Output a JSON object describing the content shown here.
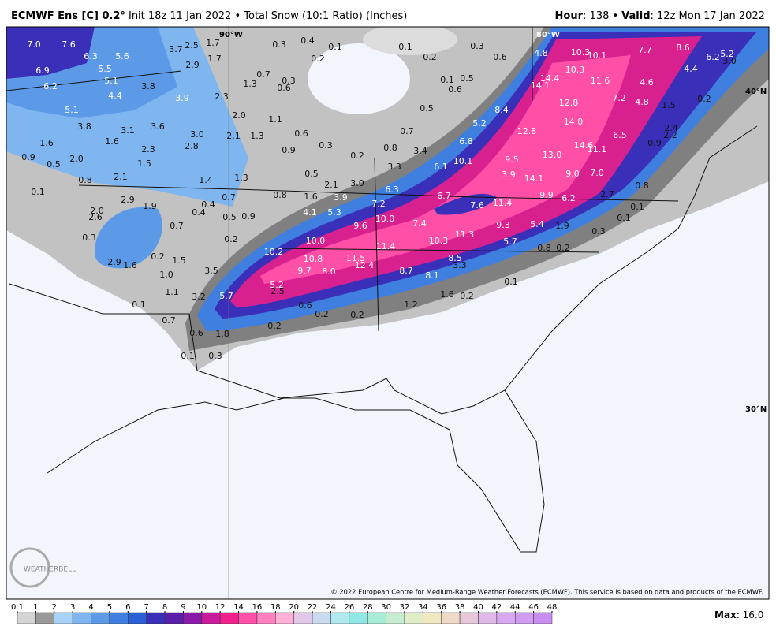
{
  "header": {
    "model": "ECMWF Ens [C] 0.2°",
    "init": "Init 18z 11 Jan 2022 • Total Snow (10:1 Ratio) (Inches)",
    "hour_label": "Hour",
    "hour_value": ": 138 •",
    "valid_label": "Valid",
    "valid_value": ": 12z Mon 17 Jan 2022"
  },
  "graticule": {
    "lon_90": "90°W",
    "lon_80": "80°W",
    "lat_40": "40°N",
    "lat_30": "30°N"
  },
  "map_labels": [
    "7.0",
    "7.6",
    "6.3",
    "5.6",
    "6.9",
    "5.5",
    "6.2",
    "5.1",
    "3.8",
    "4.4",
    "3.7",
    "2.5",
    "1.7",
    "2.9",
    "1.7",
    "3.9",
    "2.3",
    "1.3",
    "0.7",
    "0.3",
    "0.6",
    "0.3",
    "0.4",
    "0.1",
    "0.2",
    "0.1",
    "0.2",
    "0.3",
    "0.6",
    "0.1",
    "0.5",
    "0.6",
    "0.5",
    "5.1",
    "2.0",
    "1.1",
    "3.8",
    "3.1",
    "3.6",
    "1.6",
    "1.6",
    "3.0",
    "2.1",
    "1.3",
    "2.8",
    "2.3",
    "0.6",
    "0.9",
    "0.5",
    "2.0",
    "1.5",
    "0.3",
    "0.9",
    "0.8",
    "0.7",
    "3.4",
    "0.2",
    "5.2",
    "8.4",
    "6.8",
    "0.5",
    "3.3",
    "6.1",
    "10.1",
    "9.5",
    "3.9",
    "14.1",
    "13.0",
    "12.8",
    "14.0",
    "14.6",
    "11.1",
    "9.0",
    "7.0",
    "6.5",
    "0.1",
    "0.8",
    "2.1",
    "1.4",
    "1.3",
    "2.1",
    "3.0",
    "0.8",
    "1.6",
    "3.9",
    "6.3",
    "6.7",
    "7.2",
    "7.6",
    "11.4",
    "9.9",
    "6.2",
    "2.7",
    "0.8",
    "0.7",
    "0.4",
    "0.4",
    "0.5",
    "0.9",
    "2.9",
    "1.9",
    "2.0",
    "2.6",
    "4.1",
    "5.3",
    "10.0",
    "9.6",
    "7.4",
    "9.3",
    "5.4",
    "1.9",
    "0.1",
    "0.1",
    "0.3",
    "0.7",
    "0.3",
    "0.2",
    "11.3",
    "10.3",
    "5.7",
    "10.0",
    "11.4",
    "0.8",
    "0.2",
    "0.2",
    "1.5",
    "2.9",
    "1.6",
    "10.2",
    "10.8",
    "11.5",
    "12.4",
    "8.5",
    "3.3",
    "9.7",
    "8.0",
    "8.7",
    "8.1",
    "3.5",
    "1.0",
    "5.2",
    "2.5",
    "1.1",
    "5.7",
    "3.2",
    "0.1",
    "0.1",
    "0.6",
    "1.2",
    "1.6",
    "0.2",
    "0.2",
    "0.2",
    "0.7",
    "0.2",
    "0.6",
    "1.8",
    "0.1",
    "0.3",
    "10.3",
    "10.1",
    "10.3",
    "11.6",
    "4.8",
    "14.4",
    "14.1",
    "7.7",
    "8.6",
    "6.2",
    "5.2",
    "3.0",
    "4.4",
    "4.6",
    "7.2",
    "4.8",
    "1.5",
    "0.2",
    "12.8",
    "2.4",
    "2.2",
    "0.9"
  ],
  "colorbar": {
    "ticks": [
      0.1,
      1,
      2,
      3,
      4,
      5,
      6,
      7,
      8,
      9,
      10,
      12,
      14,
      16,
      18,
      20,
      22,
      24,
      26,
      28,
      30,
      32,
      34,
      36,
      38,
      40,
      42,
      44,
      46,
      48
    ],
    "colors": [
      "#d4d4d4",
      "#9a9a9a",
      "#a8d2f7",
      "#7fb6f0",
      "#5c9ae8",
      "#3f7fe0",
      "#2b5fd6",
      "#3a2fb8",
      "#5a1ea8",
      "#8a1aa8",
      "#c81c9c",
      "#f0218c",
      "#ff4fa7",
      "#ff7fc0",
      "#ffb0d6",
      "#e2c8e8",
      "#c9dcef",
      "#b0e8f0",
      "#8fe8e4",
      "#a8ecd8",
      "#c8ecd0",
      "#e0eec8",
      "#f0e8c0",
      "#f0d8c8",
      "#e8c8d8",
      "#e0b8e8",
      "#d8a8f0",
      "#d09cf0",
      "#c88ef0"
    ],
    "max_label": "Max",
    "max_value": ": 16.0"
  },
  "logo": "WEATHERBELL",
  "copyright": "© 2022 European Centre for Medium-Range Weather Forecasts (ECMWF). This service is based on data and products of the ECMWF."
}
